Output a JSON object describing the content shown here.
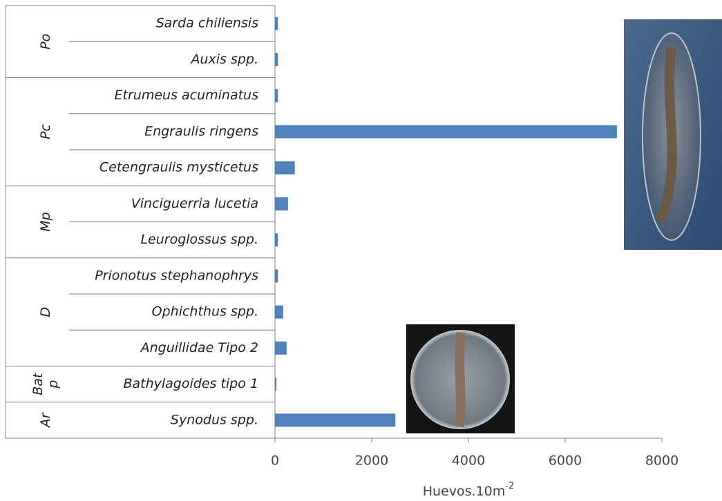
{
  "chart_data": {
    "type": "bar",
    "orientation": "horizontal",
    "color": "#4f81bd",
    "groups": [
      {
        "lines": [
          "Po"
        ],
        "categories": [
          "Sarda chiliensis",
          "Auxis spp."
        ],
        "values": [
          60,
          60
        ]
      },
      {
        "lines": [
          "Pc"
        ],
        "categories": [
          "Etrumeus acuminatus",
          "Engraulis ringens",
          "Cetengraulis mysticetus"
        ],
        "values": [
          60,
          7070,
          410
        ]
      },
      {
        "lines": [
          "Mp"
        ],
        "categories": [
          "Vinciguerria lucetia",
          "Leuroglossus spp."
        ],
        "values": [
          270,
          60
        ]
      },
      {
        "lines": [
          "D"
        ],
        "categories": [
          "Prionotus stephanophrys",
          "Ophichthus spp.",
          "Anguillidae Tipo 2"
        ],
        "values": [
          60,
          170,
          240
        ]
      },
      {
        "lines": [
          "Bat",
          "p"
        ],
        "categories": [
          "Bathylagoides tipo 1"
        ],
        "values": [
          30
        ]
      },
      {
        "lines": [
          "Ar"
        ],
        "categories": [
          "Synodus spp."
        ],
        "values": [
          2490
        ]
      }
    ],
    "xlim": [
      0,
      8000
    ],
    "xticks": [
      0,
      2000,
      4000,
      6000,
      8000
    ],
    "xlabel": "Huevos.10m",
    "xlabel_superscript": "-2"
  }
}
